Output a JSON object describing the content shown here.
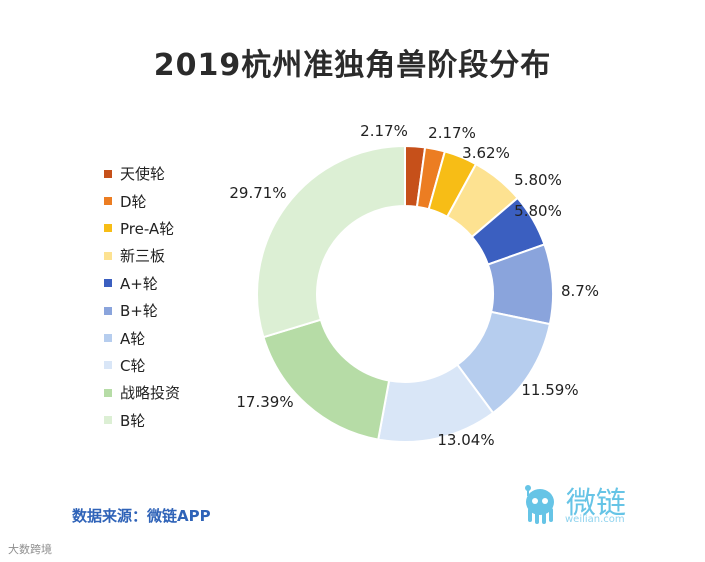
{
  "chart_data": {
    "type": "pie",
    "variant": "donut",
    "title": "2019杭州准独角兽阶段分布",
    "series": [
      {
        "name": "天使轮",
        "value": 2.17,
        "label": "2.17%",
        "color": "#c6501a"
      },
      {
        "name": "D轮",
        "value": 2.17,
        "label": "2.17%",
        "color": "#ec7d22"
      },
      {
        "name": "Pre-A轮",
        "value": 3.62,
        "label": "3.62%",
        "color": "#f7bd16"
      },
      {
        "name": "新三板",
        "value": 5.8,
        "label": "5.80%",
        "color": "#fde291"
      },
      {
        "name": "A+轮",
        "value": 5.8,
        "label": "5.80%",
        "color": "#3b5fc0"
      },
      {
        "name": "B+轮",
        "value": 8.7,
        "label": "8.7%",
        "color": "#8aa4dc"
      },
      {
        "name": "A轮",
        "value": 11.59,
        "label": "11.59%",
        "color": "#b6cdee"
      },
      {
        "name": "C轮",
        "value": 13.04,
        "label": "13.04%",
        "color": "#d9e6f7"
      },
      {
        "name": "战略投资",
        "value": 17.39,
        "label": "17.39%",
        "color": "#b6dca6"
      },
      {
        "name": "B轮",
        "value": 29.71,
        "label": "29.71%",
        "color": "#dcefd4"
      }
    ],
    "legend_position": "left"
  },
  "source": "数据来源：微链APP",
  "brand": {
    "name": "微链",
    "sub": "weilian.com"
  },
  "watermark": "大数跨境"
}
